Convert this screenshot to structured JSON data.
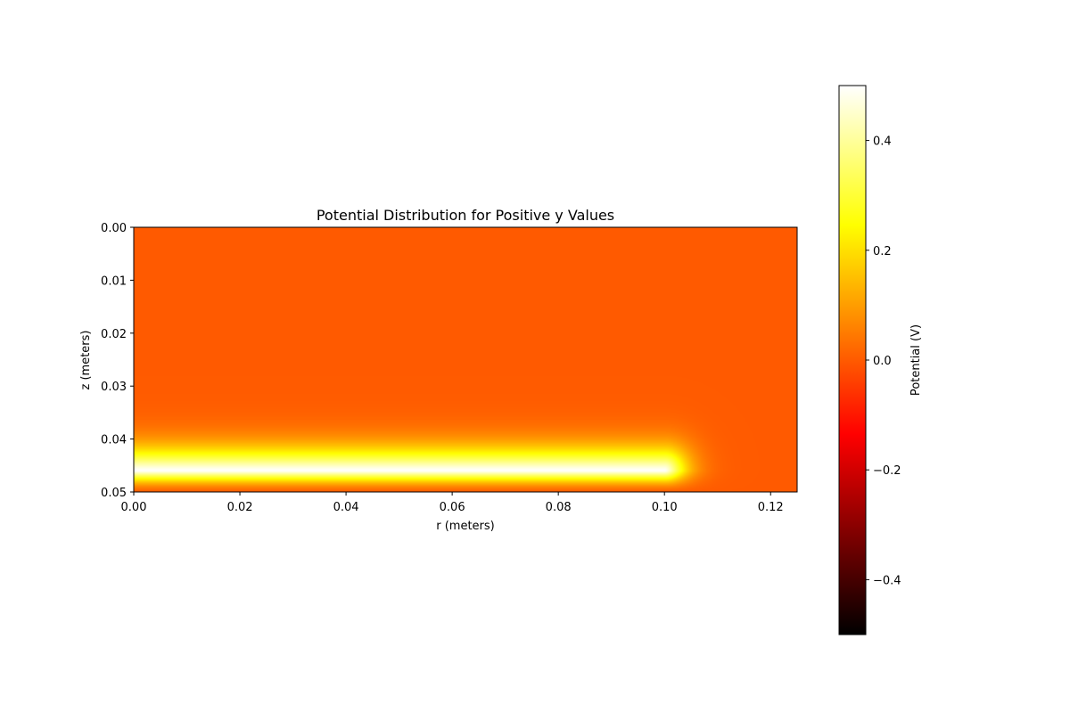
{
  "chart_data": {
    "type": "heatmap",
    "title": "Potential Distribution for Positive y Values",
    "xlabel": "r (meters)",
    "ylabel": "z (meters)",
    "xlim": [
      0.0,
      0.125
    ],
    "ylim": [
      0.05,
      0.0
    ],
    "y_axis_inverted": true,
    "x_ticks": [
      "0.00",
      "0.02",
      "0.04",
      "0.06",
      "0.08",
      "0.10",
      "0.12"
    ],
    "x_tick_values": [
      0.0,
      0.02,
      0.04,
      0.06,
      0.08,
      0.1,
      0.12
    ],
    "y_ticks": [
      "0.00",
      "0.01",
      "0.02",
      "0.03",
      "0.04",
      "0.05"
    ],
    "y_tick_values": [
      0.0,
      0.01,
      0.02,
      0.03,
      0.04,
      0.05
    ],
    "colormap": "hot",
    "colorbar": {
      "label": "Potential (V)",
      "range": [
        -0.5,
        0.5
      ],
      "ticks": [
        "−0.4",
        "−0.2",
        "0.0",
        "0.2",
        "0.4"
      ],
      "tick_values": [
        -0.4,
        -0.2,
        0.0,
        0.2,
        0.4
      ],
      "placement": "right"
    },
    "field": {
      "background_potential": 0.0,
      "disk_potential": 0.5,
      "disk_z": 0.046,
      "disk_r_max": 0.1,
      "boundary_z": 0.05,
      "boundary_potential": 0.0
    },
    "grid": false
  }
}
